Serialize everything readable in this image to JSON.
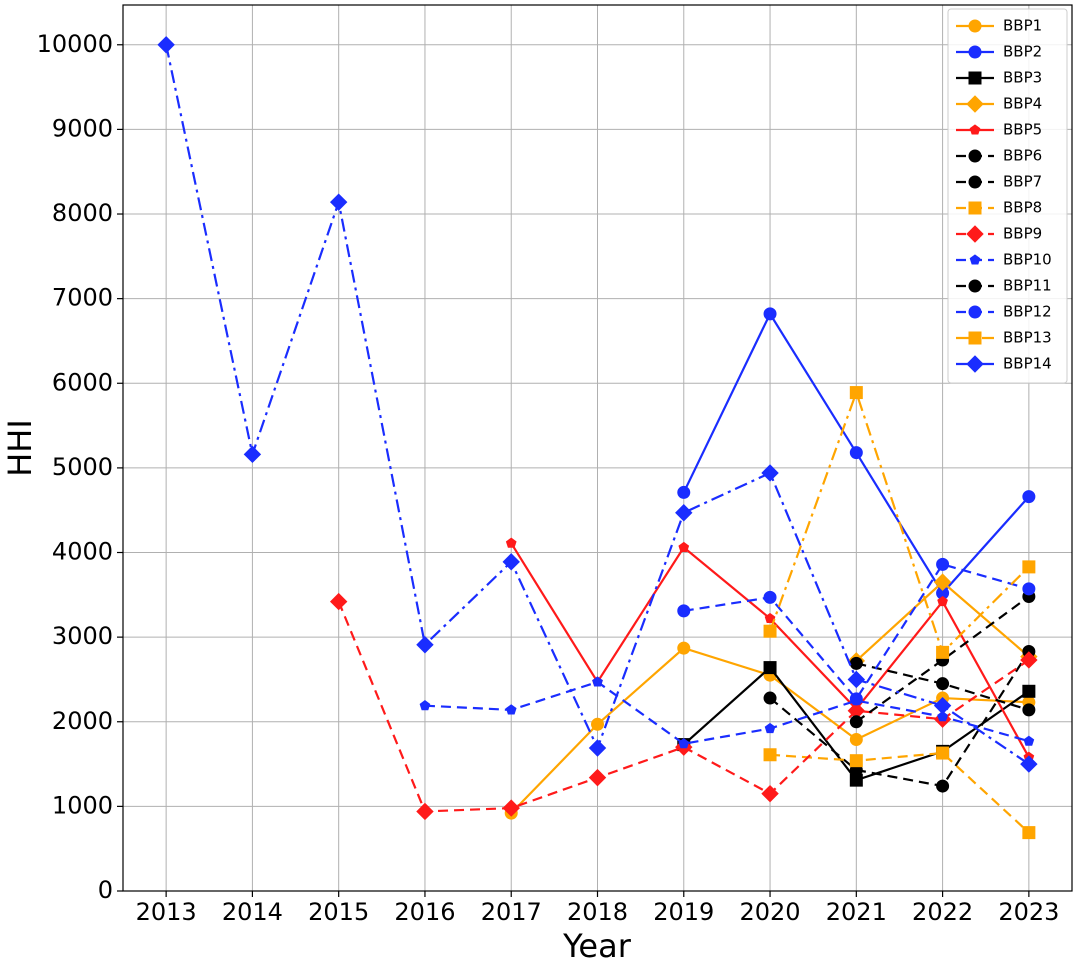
{
  "chart_data": {
    "type": "line",
    "x_label": "Year",
    "y_label": "HHI",
    "x": [
      2013,
      2014,
      2015,
      2016,
      2017,
      2018,
      2019,
      2020,
      2021,
      2022,
      2023
    ],
    "xlim": [
      2012.5,
      2023.5
    ],
    "xticks": [
      2013,
      2014,
      2015,
      2016,
      2017,
      2018,
      2019,
      2020,
      2021,
      2022,
      2023
    ],
    "ylim": [
      0,
      10470
    ],
    "yticks": [
      0,
      1000,
      2000,
      3000,
      4000,
      5000,
      6000,
      7000,
      8000,
      9000,
      10000
    ],
    "grid": true,
    "legend": "upper right",
    "series": [
      {
        "name": "BBP1",
        "color": "#ffa500",
        "linestyle": "solid",
        "marker": "circle",
        "values": [
          null,
          null,
          null,
          null,
          920,
          1970,
          2870,
          2550,
          1790,
          2280,
          2230
        ]
      },
      {
        "name": "BBP2",
        "color": "#1a2dff",
        "linestyle": "solid",
        "marker": "circle",
        "values": [
          null,
          null,
          null,
          null,
          null,
          null,
          4710,
          6820,
          5180,
          3520,
          4660
        ]
      },
      {
        "name": "BBP3",
        "color": "#000000",
        "linestyle": "solid",
        "marker": "square",
        "values": [
          null,
          null,
          null,
          null,
          null,
          null,
          1730,
          2640,
          1310,
          1650,
          2360
        ]
      },
      {
        "name": "BBP4",
        "color": "#ffa500",
        "linestyle": "solid",
        "marker": "diamond",
        "values": [
          null,
          null,
          null,
          null,
          null,
          null,
          null,
          null,
          2720,
          3650,
          2770
        ]
      },
      {
        "name": "BBP5",
        "color": "#ff1a1a",
        "linestyle": "solid",
        "marker": "pentagon",
        "values": [
          null,
          null,
          null,
          null,
          4110,
          2470,
          4060,
          3220,
          2150,
          3420,
          1580
        ]
      },
      {
        "name": "BBP6",
        "color": "#000000",
        "linestyle": "dashed",
        "marker": "circle",
        "values": [
          null,
          null,
          null,
          null,
          null,
          null,
          null,
          2280,
          1430,
          1240,
          2830
        ]
      },
      {
        "name": "BBP7",
        "color": "#000000",
        "linestyle": "dashed",
        "marker": "circle",
        "values": [
          null,
          null,
          null,
          null,
          null,
          null,
          null,
          null,
          2690,
          2450,
          2140
        ]
      },
      {
        "name": "BBP8",
        "color": "#ffa500",
        "linestyle": "dashed",
        "marker": "square",
        "values": [
          null,
          null,
          null,
          null,
          null,
          null,
          null,
          1610,
          1540,
          1630,
          690
        ]
      },
      {
        "name": "BBP9",
        "color": "#ff1a1a",
        "linestyle": "dashed",
        "marker": "diamond",
        "values": [
          null,
          null,
          3420,
          940,
          980,
          1340,
          1700,
          1150,
          2130,
          2030,
          2730
        ]
      },
      {
        "name": "BBP10",
        "color": "#1a2dff",
        "linestyle": "dashed",
        "marker": "pentagon",
        "values": [
          null,
          null,
          null,
          2190,
          2140,
          2470,
          1740,
          1920,
          2250,
          2060,
          1770
        ]
      },
      {
        "name": "BBP11",
        "color": "#000000",
        "linestyle": "dashed",
        "marker": "circle",
        "values": [
          null,
          null,
          null,
          null,
          null,
          null,
          null,
          null,
          2000,
          2730,
          3480
        ]
      },
      {
        "name": "BBP12",
        "color": "#1a2dff",
        "linestyle": "dashed",
        "marker": "circle",
        "values": [
          null,
          null,
          null,
          null,
          null,
          null,
          3310,
          3470,
          2270,
          3860,
          3570
        ]
      },
      {
        "name": "BBP13",
        "color": "#ffa500",
        "linestyle": "dashdot",
        "marker": "square",
        "values": [
          null,
          null,
          null,
          null,
          null,
          null,
          null,
          3070,
          5890,
          2820,
          3830
        ]
      },
      {
        "name": "BBP14",
        "color": "#1a2dff",
        "linestyle": "dashdot",
        "marker": "diamond",
        "values": [
          10000,
          5160,
          8140,
          2910,
          3890,
          1690,
          4470,
          4940,
          2500,
          2190,
          1500
        ]
      }
    ]
  }
}
